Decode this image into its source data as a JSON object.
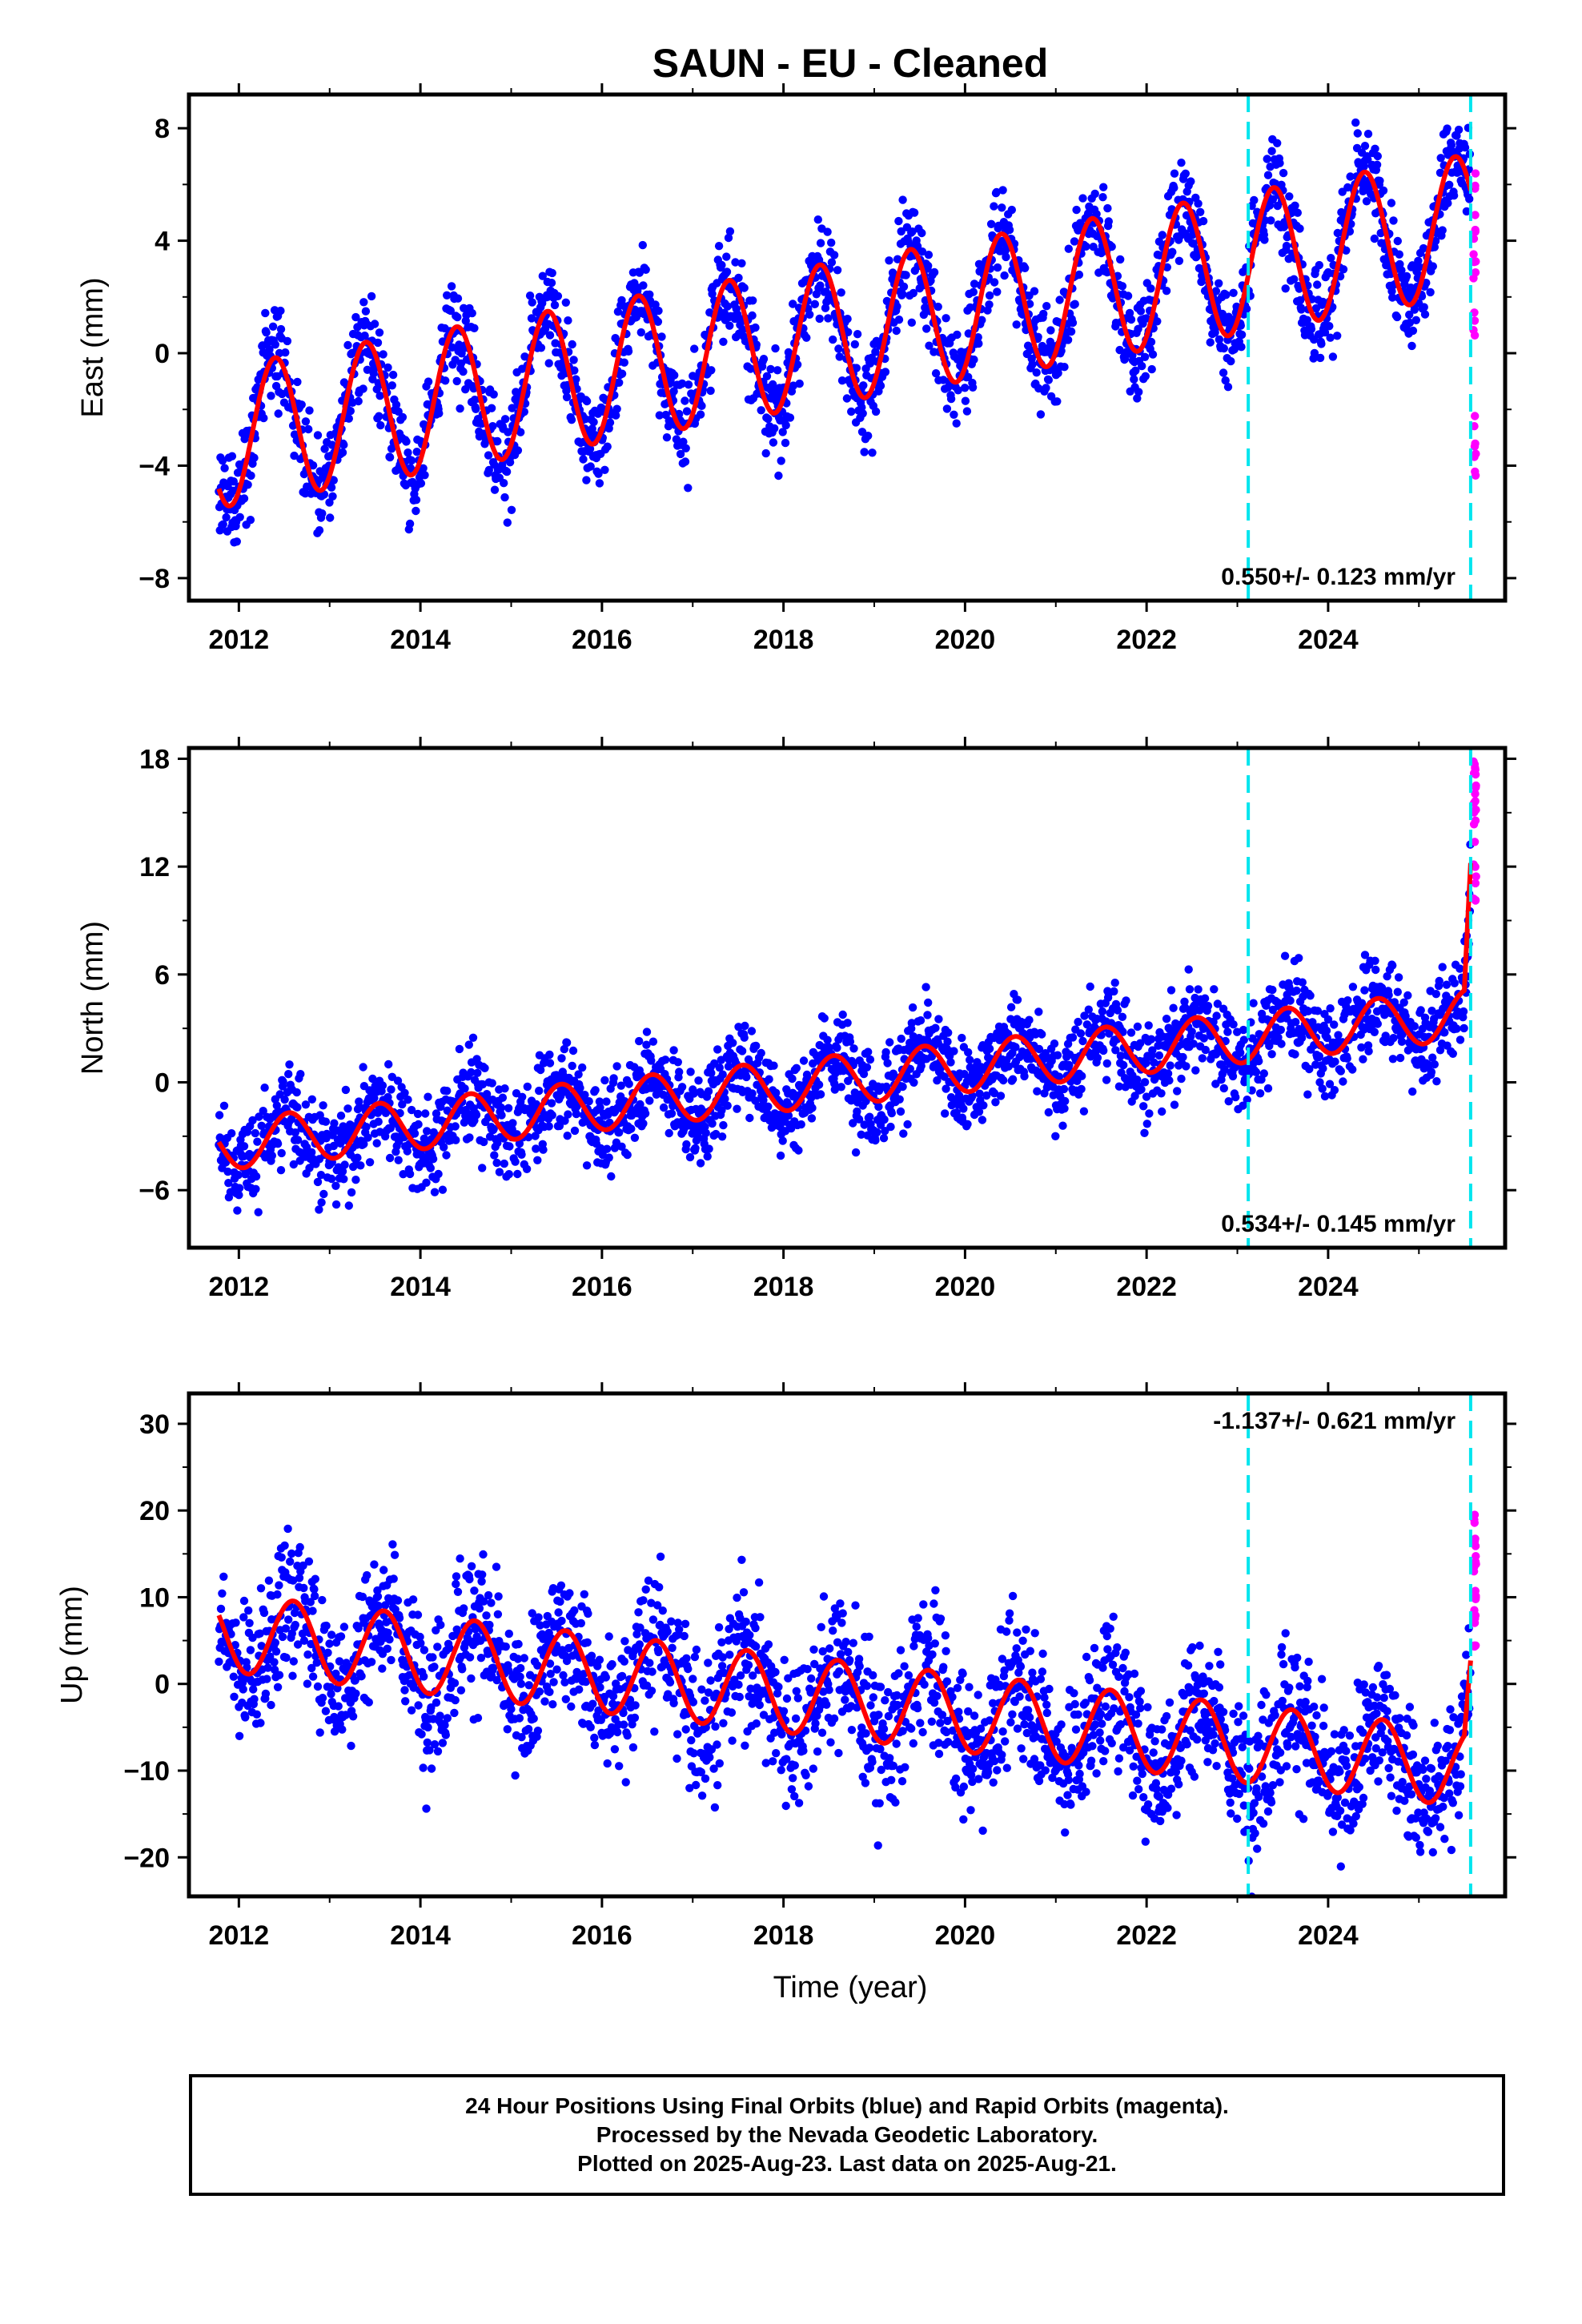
{
  "title": "SAUN  - EU - Cleaned",
  "colors": {
    "final_orbits": "#0000ff",
    "rapid_orbits": "#ff00ff",
    "model": "#ff0000",
    "breaks": "#00e5ee",
    "frame": "#000000"
  },
  "xlabel": "Time (year)",
  "footer": {
    "line1": "24 Hour Positions Using Final Orbits (blue) and Rapid Orbits (magenta).",
    "line2": "Processed by the Nevada Geodetic Laboratory.",
    "line3": "Plotted on 2025-Aug-23. Last data on 2025-Aug-21."
  },
  "chart_data": [
    {
      "type": "scatter",
      "ylabel": "East (mm)",
      "xlim": [
        2011.45,
        2025.95
      ],
      "ylim": [
        -8.8,
        9.2
      ],
      "xticks": [
        2012,
        2014,
        2016,
        2018,
        2020,
        2022,
        2024
      ],
      "yticks": [
        -8,
        -4,
        0,
        4,
        8
      ],
      "ytick_labels": [
        "−8",
        "−4",
        "0",
        "4",
        "8"
      ],
      "rate_label": "0.550+/- 0.123 mm/yr",
      "rate_position": "bottom-right",
      "breaks": [
        2023.12,
        2025.57
      ],
      "model": {
        "trend_start": -3.0,
        "trend_mm_per_yr": 0.55,
        "annual_amplitude": 2.5,
        "annual_peak": 0.4,
        "noise_sd": 0.9,
        "last_offset": 0.0
      },
      "rapid": {
        "from": 2025.6,
        "to": 2025.63,
        "center": 1.0,
        "spread": 5.5
      }
    },
    {
      "type": "scatter",
      "ylabel": "North (mm)",
      "xlim": [
        2011.45,
        2025.95
      ],
      "ylim": [
        -9.2,
        18.6
      ],
      "xticks": [
        2012,
        2014,
        2016,
        2018,
        2020,
        2022,
        2024
      ],
      "yticks": [
        -6,
        0,
        6,
        12,
        18
      ],
      "ytick_labels": [
        "−6",
        "0",
        "6",
        "12",
        "18"
      ],
      "rate_label": "0.534+/- 0.145 mm/yr",
      "rate_position": "bottom-right",
      "breaks": [
        2023.12,
        2025.57
      ],
      "model": {
        "trend_start": -3.5,
        "trend_mm_per_yr": 0.53,
        "annual_amplitude": 1.4,
        "annual_peak": 0.55,
        "noise_sd": 1.3,
        "last_offset": 7.0
      },
      "rapid": {
        "from": 2025.6,
        "to": 2025.63,
        "center": 14.0,
        "spread": 4.0
      }
    },
    {
      "type": "scatter",
      "ylabel": "Up (mm)",
      "xlim": [
        2011.45,
        2025.95
      ],
      "ylim": [
        -24.5,
        33.5
      ],
      "xticks": [
        2012,
        2014,
        2016,
        2018,
        2020,
        2022,
        2024
      ],
      "yticks": [
        -20,
        -10,
        0,
        10,
        20,
        30
      ],
      "ytick_labels": [
        "−20",
        "−10",
        "0",
        "10",
        "20",
        "30"
      ],
      "rate_label": "-1.137+/- 0.621 mm/yr",
      "rate_position": "top-right",
      "breaks": [
        2023.12,
        2025.57
      ],
      "model": {
        "trend_start": 6.0,
        "trend_mm_per_yr": -1.14,
        "annual_amplitude": 4.5,
        "annual_peak": 0.6,
        "noise_sd": 4.2,
        "last_offset": 8.0
      },
      "rapid": {
        "from": 2025.6,
        "to": 2025.63,
        "center": 12.0,
        "spread": 9.0
      }
    }
  ]
}
